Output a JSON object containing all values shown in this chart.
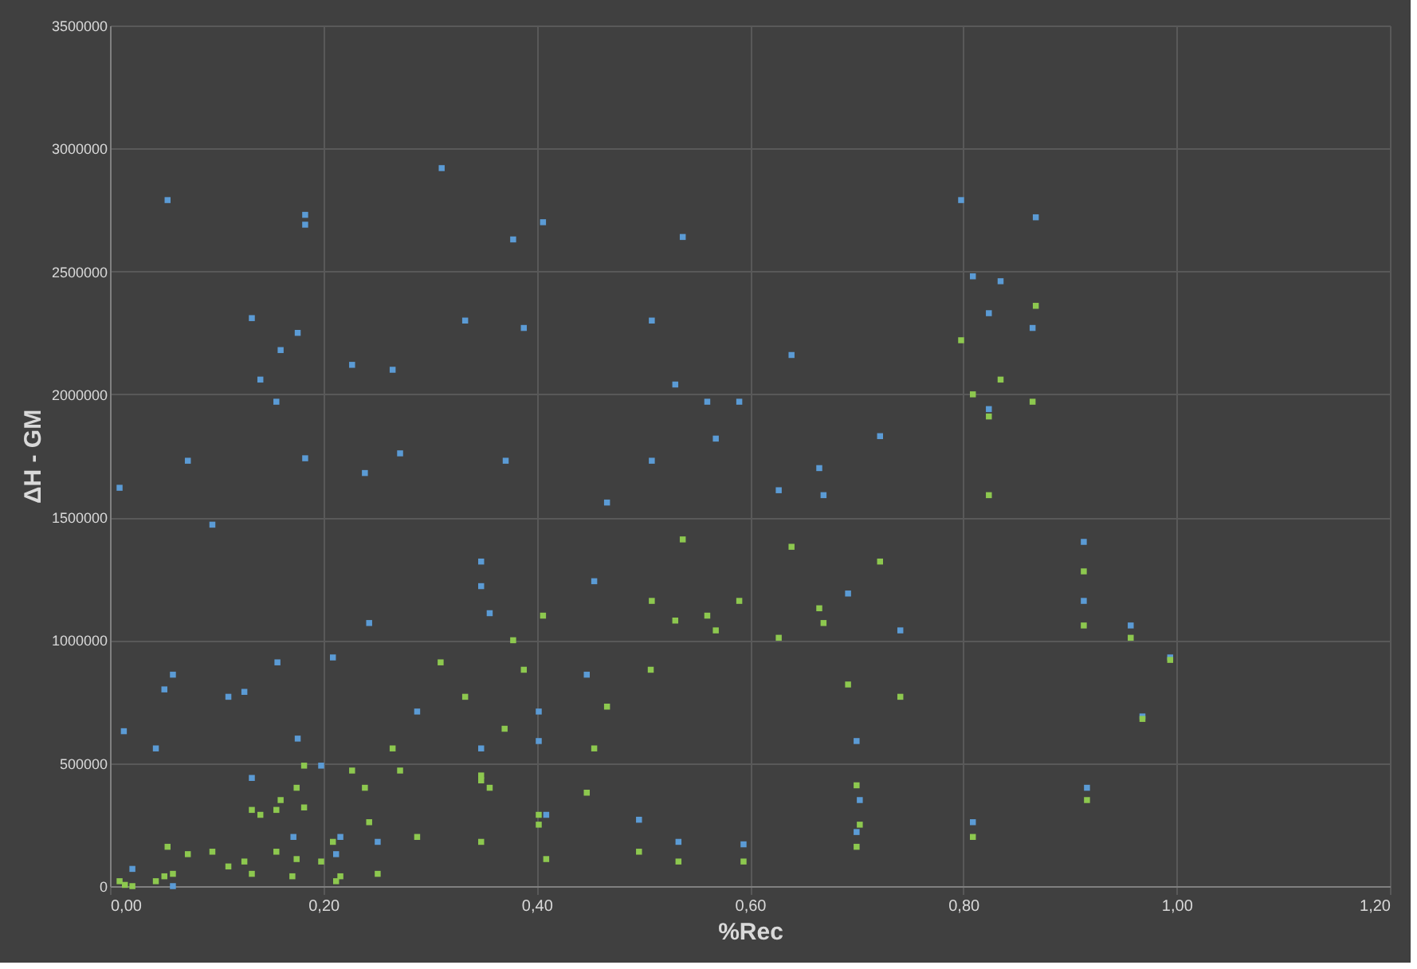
{
  "chart_data": {
    "type": "scatter",
    "xlabel": "%Rec",
    "ylabel": "ΔH - GM",
    "xlim": [
      0,
      1.2
    ],
    "xticks": [
      {
        "value": 0,
        "label": "0,00"
      },
      {
        "value": 0.2,
        "label": "0,20"
      },
      {
        "value": 0.4,
        "label": "0,40"
      },
      {
        "value": 0.6,
        "label": "0,60"
      },
      {
        "value": 0.8,
        "label": "0,80"
      },
      {
        "value": 1.0,
        "label": "1,00"
      },
      {
        "value": 1.2,
        "label": "1,20"
      }
    ],
    "ylim": [
      0,
      3500000
    ],
    "yticks": [
      0,
      500000,
      1000000,
      1500000,
      2000000,
      2500000,
      3000000,
      3500000
    ],
    "grid": true,
    "marker": "square",
    "series": [
      {
        "color": "#5b9bd5",
        "x": [
          0.311,
          0.054,
          0.183,
          0.183,
          0.378,
          0.133,
          0.333,
          0.176,
          0.388,
          0.16,
          0.227,
          0.265,
          0.141,
          0.156,
          0.073,
          0.183,
          0.272,
          0.371,
          0.239,
          0.009,
          0.096,
          0.348,
          0.348,
          0.356,
          0.243,
          0.209,
          0.059,
          0.051,
          0.157,
          0.111,
          0.126,
          0.288,
          0.013,
          0.043,
          0.176,
          0.348,
          0.198,
          0.133,
          0.172,
          0.216,
          0.251,
          0.212,
          0.021,
          0.059,
          0.406,
          0.537,
          0.508,
          0.639,
          0.53,
          0.56,
          0.59,
          0.568,
          0.722,
          0.508,
          0.665,
          0.627,
          0.669,
          0.466,
          0.454,
          0.692,
          0.741,
          0.447,
          0.402,
          0.402,
          0.7,
          0.703,
          0.7,
          0.409,
          0.496,
          0.533,
          0.594,
          0.798,
          0.868,
          0.809,
          0.835,
          0.824,
          0.865,
          0.824,
          0.913,
          0.913,
          0.957,
          0.994,
          0.968,
          0.916,
          0.809
        ],
        "values": [
          2920000,
          2790000,
          2730000,
          2690000,
          2630000,
          2310000,
          2300000,
          2250000,
          2270000,
          2180000,
          2120000,
          2100000,
          2060000,
          1970000,
          1730000,
          1740000,
          1760000,
          1730000,
          1680000,
          1620000,
          1470000,
          1320000,
          1220000,
          1110000,
          1070000,
          930000,
          860000,
          800000,
          910000,
          770000,
          790000,
          710000,
          630000,
          560000,
          600000,
          560000,
          490000,
          440000,
          200000,
          200000,
          180000,
          130000,
          70000,
          0,
          2700000,
          2640000,
          2300000,
          2160000,
          2040000,
          1970000,
          1970000,
          1820000,
          1830000,
          1730000,
          1700000,
          1610000,
          1590000,
          1560000,
          1240000,
          1190000,
          1040000,
          860000,
          710000,
          590000,
          590000,
          350000,
          220000,
          290000,
          270000,
          180000,
          170000,
          2790000,
          2720000,
          2480000,
          2460000,
          2330000,
          2270000,
          1940000,
          1400000,
          1160000,
          1060000,
          930000,
          690000,
          400000,
          260000
        ]
      },
      {
        "color": "#8dc84f",
        "x": [
          0.378,
          0.31,
          0.388,
          0.333,
          0.37,
          0.265,
          0.182,
          0.227,
          0.272,
          0.239,
          0.175,
          0.348,
          0.348,
          0.356,
          0.16,
          0.133,
          0.141,
          0.156,
          0.182,
          0.243,
          0.288,
          0.348,
          0.054,
          0.073,
          0.096,
          0.156,
          0.111,
          0.126,
          0.133,
          0.175,
          0.198,
          0.171,
          0.209,
          0.216,
          0.212,
          0.251,
          0.009,
          0.014,
          0.021,
          0.043,
          0.051,
          0.059,
          0.537,
          0.639,
          0.722,
          0.406,
          0.508,
          0.53,
          0.56,
          0.568,
          0.59,
          0.665,
          0.669,
          0.627,
          0.507,
          0.692,
          0.741,
          0.466,
          0.454,
          0.447,
          0.402,
          0.402,
          0.7,
          0.703,
          0.7,
          0.409,
          0.496,
          0.533,
          0.594,
          0.868,
          0.798,
          0.835,
          0.809,
          0.865,
          0.824,
          0.824,
          0.913,
          0.913,
          0.957,
          0.994,
          0.968,
          0.916,
          0.809
        ],
        "values": [
          1000000,
          910000,
          880000,
          770000,
          640000,
          560000,
          490000,
          470000,
          470000,
          400000,
          400000,
          450000,
          430000,
          400000,
          350000,
          310000,
          290000,
          310000,
          320000,
          260000,
          200000,
          180000,
          160000,
          130000,
          140000,
          140000,
          80000,
          100000,
          50000,
          110000,
          100000,
          40000,
          180000,
          40000,
          20000,
          50000,
          20000,
          5000,
          0,
          20000,
          40000,
          50000,
          1410000,
          1380000,
          1320000,
          1100000,
          1160000,
          1080000,
          1100000,
          1040000,
          1160000,
          1130000,
          1070000,
          1010000,
          880000,
          820000,
          770000,
          730000,
          560000,
          380000,
          290000,
          250000,
          410000,
          250000,
          160000,
          110000,
          140000,
          100000,
          100000,
          2360000,
          2220000,
          2060000,
          2000000,
          1970000,
          1910000,
          1590000,
          1280000,
          1060000,
          1010000,
          920000,
          680000,
          350000,
          200000
        ]
      }
    ]
  }
}
